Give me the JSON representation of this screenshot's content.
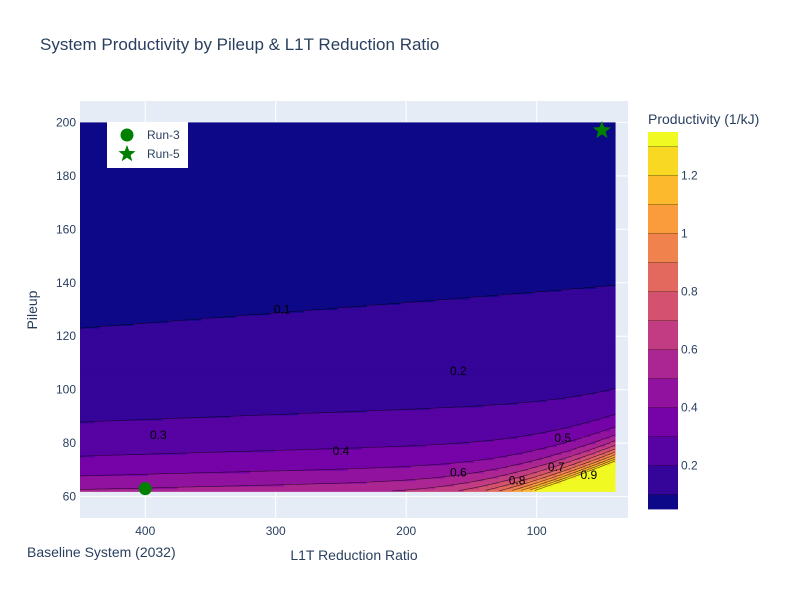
{
  "chart_data": {
    "type": "contour",
    "title": "System Productivity by Pileup & L1T Reduction Ratio",
    "xlabel": "L1T Reduction Ratio",
    "ylabel": "Pileup",
    "x_reversed": true,
    "xlim": [
      450,
      30
    ],
    "ylim": [
      52,
      208
    ],
    "x_ticks": [
      400,
      300,
      200,
      100
    ],
    "y_ticks": [
      60,
      80,
      100,
      120,
      140,
      160,
      180,
      200
    ],
    "grid": true,
    "contour_grid": {
      "x_range": [
        450,
        40
      ],
      "y_range": [
        62,
        200
      ]
    },
    "contour_levels": [
      0.1,
      0.2,
      0.3,
      0.4,
      0.5,
      0.6,
      0.7,
      0.8,
      0.9,
      1.0,
      1.1,
      1.2,
      1.3
    ],
    "contour_labels": [
      {
        "text": "0.1",
        "x": 295,
        "y": 130
      },
      {
        "text": "0.2",
        "x": 160,
        "y": 107
      },
      {
        "text": "0.3",
        "x": 390,
        "y": 83
      },
      {
        "text": "0.4",
        "x": 250,
        "y": 77
      },
      {
        "text": "0.5",
        "x": 80,
        "y": 82
      },
      {
        "text": "0.6",
        "x": 160,
        "y": 69
      },
      {
        "text": "0.7",
        "x": 85,
        "y": 71
      },
      {
        "text": "0.8",
        "x": 115,
        "y": 66
      },
      {
        "text": "0.9",
        "x": 60,
        "y": 68
      }
    ],
    "colorbar": {
      "title": "Productivity (1/kJ)",
      "range": [
        0.05,
        1.35
      ],
      "ticks": [
        0.2,
        0.4,
        0.6,
        0.8,
        1,
        1.2
      ],
      "colorscale": [
        "#0d0887",
        "#46039f",
        "#7201a8",
        "#9c179e",
        "#bd3786",
        "#d8576b",
        "#ed7953",
        "#fb9f3a",
        "#fdca26",
        "#f0f921"
      ]
    },
    "markers": [
      {
        "name": "Run-3",
        "symbol": "circle",
        "x": 400,
        "y": 63,
        "color": "#008000"
      },
      {
        "name": "Run-5",
        "symbol": "star",
        "x": 50,
        "y": 197,
        "color": "#008000"
      }
    ],
    "legend_position": "top-left"
  },
  "footnote": "Baseline System (2032)"
}
